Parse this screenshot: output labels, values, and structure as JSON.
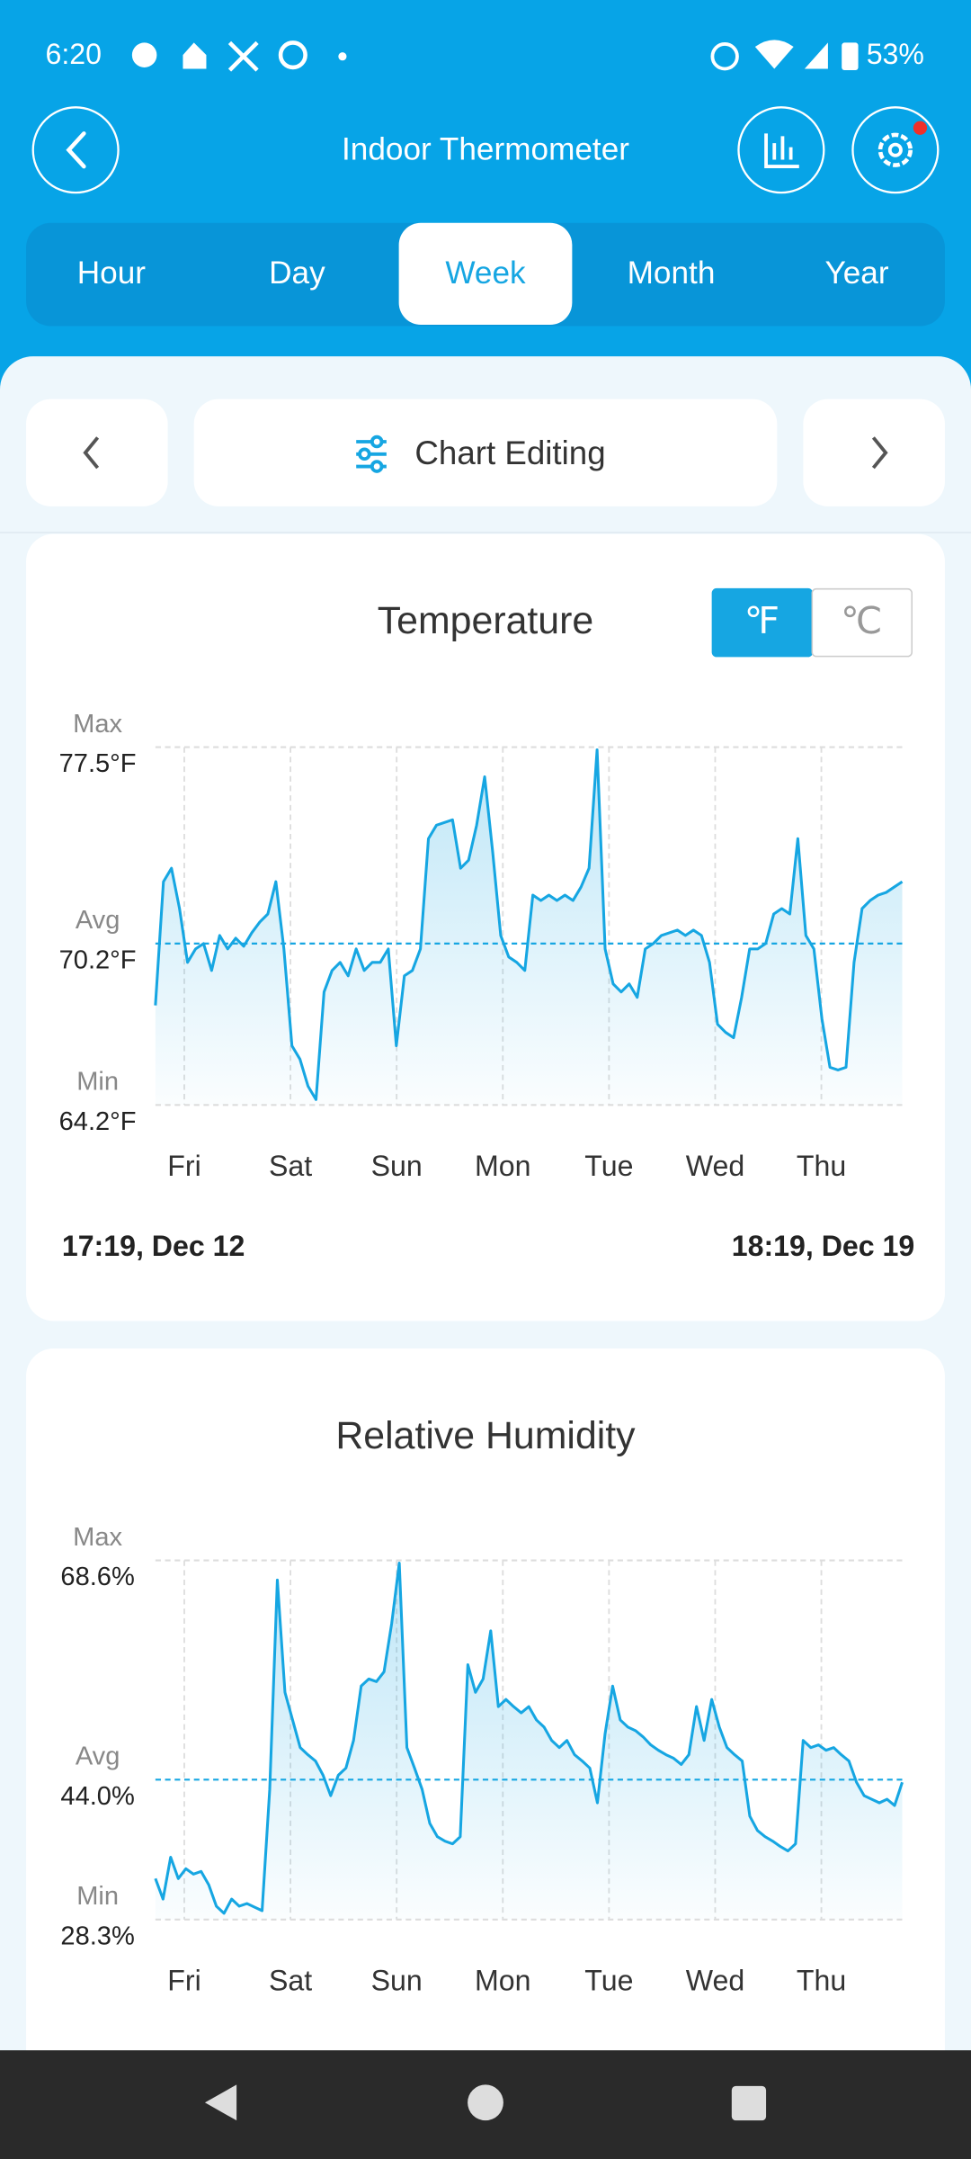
{
  "status_bar": {
    "time": "6:20",
    "battery": "53%"
  },
  "header": {
    "title": "Indoor Thermometer"
  },
  "tabs": {
    "items": [
      "Hour",
      "Day",
      "Week",
      "Month",
      "Year"
    ],
    "active": 2
  },
  "toolbar": {
    "label": "Chart Editing"
  },
  "chart_data": [
    {
      "type": "line",
      "title": "Temperature",
      "units": [
        "℉",
        "℃"
      ],
      "active_unit": 0,
      "x_labels": [
        "Fri",
        "Sat",
        "Sun",
        "Mon",
        "Tue",
        "Wed",
        "Thu"
      ],
      "color": "#16a6e2",
      "ylim": [
        64.2,
        77.5
      ],
      "yticks": [
        {
          "value": 64.2,
          "label": "64.2°F"
        },
        {
          "value": 70.2,
          "label": "70.2°F"
        },
        {
          "value": 77.5,
          "label": "77.5°F"
        }
      ],
      "ytick_names": [
        "Min",
        "Avg",
        "Max"
      ],
      "start_label": "17:19, Dec 12",
      "end_label": "18:19, Dec 19",
      "values": [
        67.9,
        72.5,
        73.0,
        71.5,
        69.5,
        70.0,
        70.2,
        69.2,
        70.5,
        70.0,
        70.4,
        70.1,
        70.6,
        71.0,
        71.3,
        72.5,
        70.0,
        66.4,
        65.9,
        64.9,
        64.4,
        68.4,
        69.2,
        69.5,
        69.0,
        70.0,
        69.2,
        69.5,
        69.5,
        70.0,
        66.4,
        69.0,
        69.2,
        70.0,
        74.1,
        74.6,
        74.7,
        74.8,
        73.0,
        73.3,
        74.6,
        76.4,
        73.6,
        70.5,
        69.7,
        69.5,
        69.2,
        72.0,
        71.8,
        72.0,
        71.8,
        72.0,
        71.8,
        72.3,
        73.0,
        77.4,
        70.0,
        68.7,
        68.4,
        68.7,
        68.2,
        70.0,
        70.2,
        70.5,
        70.6,
        70.7,
        70.5,
        70.7,
        70.5,
        69.5,
        67.2,
        66.9,
        66.7,
        68.2,
        70.0,
        70.0,
        70.2,
        71.3,
        71.5,
        71.3,
        74.1,
        70.5,
        70.0,
        67.4,
        65.6,
        65.5,
        65.6,
        69.5,
        71.5,
        71.8,
        72.0,
        72.1,
        72.3,
        72.5
      ]
    },
    {
      "type": "line",
      "title": "Relative Humidity",
      "x_labels": [
        "Fri",
        "Sat",
        "Sun",
        "Mon",
        "Tue",
        "Wed",
        "Thu"
      ],
      "color": "#16a6e2",
      "ylim": [
        28.3,
        68.6
      ],
      "yticks": [
        {
          "value": 28.3,
          "label": "28.3%"
        },
        {
          "value": 44.0,
          "label": "44.0%"
        },
        {
          "value": 68.6,
          "label": "68.6%"
        }
      ],
      "ytick_names": [
        "Min",
        "Avg",
        "Max"
      ],
      "values": [
        32.9,
        30.6,
        35.3,
        32.9,
        34.0,
        33.4,
        33.7,
        32.2,
        29.8,
        29.0,
        30.6,
        29.8,
        30.1,
        29.7,
        29.3,
        42.9,
        66.4,
        53.8,
        50.7,
        47.6,
        46.8,
        46.1,
        44.5,
        42.2,
        44.5,
        45.3,
        48.4,
        54.5,
        55.3,
        55.0,
        56.1,
        61.5,
        68.3,
        47.6,
        45.3,
        42.9,
        39.1,
        37.6,
        37.1,
        36.8,
        37.6,
        56.9,
        53.8,
        55.3,
        60.7,
        52.2,
        53.0,
        52.2,
        51.5,
        52.2,
        50.7,
        49.9,
        48.4,
        47.6,
        48.4,
        46.8,
        46.1,
        45.3,
        41.4,
        49.1,
        54.5,
        50.7,
        49.9,
        49.5,
        48.8,
        47.9,
        47.3,
        46.8,
        46.4,
        45.7,
        46.8,
        52.2,
        48.4,
        53.0,
        49.9,
        47.6,
        46.8,
        46.1,
        39.9,
        38.3,
        37.6,
        37.1,
        36.5,
        36.0,
        36.8,
        48.4,
        47.6,
        47.9,
        47.3,
        47.6,
        46.8,
        46.1,
        43.7,
        42.2,
        41.8,
        41.4,
        41.8,
        41.1,
        43.7
      ]
    }
  ]
}
